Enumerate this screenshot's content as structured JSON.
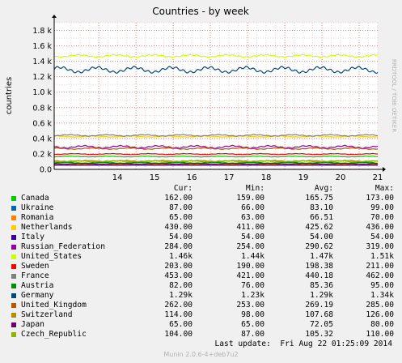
{
  "chart_data": {
    "type": "line",
    "title": "Countries - by week",
    "ylabel": "countries",
    "side_label": "RRDTOOL / TOBI OETIKER",
    "ylim": [
      0,
      1900
    ],
    "yticks": [
      "0.0",
      "0.2 k",
      "0.4 k",
      "0.6 k",
      "0.8 k",
      "1.0 k",
      "1.2 k",
      "1.4 k",
      "1.6 k",
      "1.8 k"
    ],
    "ytick_values": [
      0,
      200,
      400,
      600,
      800,
      1000,
      1200,
      1400,
      1600,
      1800
    ],
    "xticks": [
      "14",
      "15",
      "16",
      "17",
      "18",
      "19",
      "20",
      "21"
    ],
    "x_range_days": [
      12.8,
      21.5
    ],
    "grid": true,
    "series": [
      {
        "name": "Canada",
        "color": "#00cc00",
        "cur": "162.00",
        "min": "159.00",
        "avg": "165.75",
        "max": "173.00",
        "level": 165.75,
        "amp": 6
      },
      {
        "name": "Ukraine",
        "color": "#0066b3",
        "cur": "87.00",
        "min": "66.00",
        "avg": "83.10",
        "max": "99.00",
        "level": 83.1,
        "amp": 12
      },
      {
        "name": "Romania",
        "color": "#ff8000",
        "cur": "65.00",
        "min": "63.00",
        "avg": "66.51",
        "max": "70.00",
        "level": 66.51,
        "amp": 3
      },
      {
        "name": "Netherlands",
        "color": "#ffcc00",
        "cur": "430.00",
        "min": "411.00",
        "avg": "425.62",
        "max": "436.00",
        "level": 425.62,
        "amp": 8
      },
      {
        "name": "Italy",
        "color": "#330099",
        "cur": "54.00",
        "min": "54.00",
        "avg": "54.00",
        "max": "54.00",
        "level": 54,
        "amp": 0
      },
      {
        "name": "Russian_Federation",
        "color": "#990099",
        "cur": "284.00",
        "min": "254.00",
        "avg": "290.62",
        "max": "319.00",
        "level": 290.62,
        "amp": 20
      },
      {
        "name": "United_States",
        "color": "#ccff00",
        "cur": "1.46k",
        "min": "1.44k",
        "avg": "1.47k",
        "max": "1.51k",
        "level": 1470,
        "amp": 18
      },
      {
        "name": "Sweden",
        "color": "#ff0000",
        "cur": "203.00",
        "min": "190.00",
        "avg": "198.38",
        "max": "211.00",
        "level": 198.38,
        "amp": 7
      },
      {
        "name": "France",
        "color": "#808080",
        "cur": "453.00",
        "min": "421.00",
        "avg": "440.18",
        "max": "462.00",
        "level": 440.18,
        "amp": 12
      },
      {
        "name": "Austria",
        "color": "#008f00",
        "cur": "82.00",
        "min": "76.00",
        "avg": "85.36",
        "max": "95.00",
        "level": 85.36,
        "amp": 6
      },
      {
        "name": "Germany",
        "color": "#00487d",
        "cur": "1.29k",
        "min": "1.23k",
        "avg": "1.29k",
        "max": "1.34k",
        "level": 1290,
        "amp": 45
      },
      {
        "name": "United_Kingdom",
        "color": "#b35a00",
        "cur": "262.00",
        "min": "253.00",
        "avg": "269.19",
        "max": "285.00",
        "level": 269.19,
        "amp": 10
      },
      {
        "name": "Switzerland",
        "color": "#b38f00",
        "cur": "114.00",
        "min": "98.00",
        "avg": "107.68",
        "max": "126.00",
        "level": 107.68,
        "amp": 9
      },
      {
        "name": "Japan",
        "color": "#6b006b",
        "cur": "65.00",
        "min": "65.00",
        "avg": "72.05",
        "max": "80.00",
        "level": 72.05,
        "amp": 6
      },
      {
        "name": "Czech_Republic",
        "color": "#8fb300",
        "cur": "104.00",
        "min": "87.00",
        "avg": "105.32",
        "max": "110.00",
        "level": 105.32,
        "amp": 8
      }
    ]
  },
  "legend_headers": {
    "cur": "Cur:",
    "min": "Min:",
    "avg": "Avg:",
    "max": "Max:"
  },
  "last_update": "Last update:  Fri Aug 22 01:25:09 2014",
  "footer": "Munin 2.0.6-4+deb7u2"
}
